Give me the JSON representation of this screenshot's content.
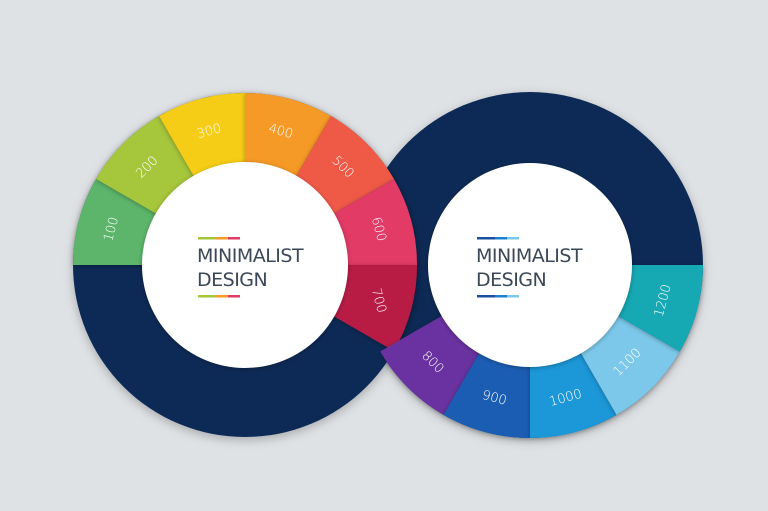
{
  "colors": {
    "background": "#dfe2e5",
    "ring_base": "#0e2c57",
    "center": "#ffffff"
  },
  "left_circle": {
    "title_line1": "MINIMALIST",
    "title_line2": "DESIGN",
    "accent_colors": [
      "#a6c63a",
      "#f59a25",
      "#e13a66"
    ],
    "segments": [
      {
        "label": "100",
        "color": "#5cb56a"
      },
      {
        "label": "200",
        "color": "#a6c63a"
      },
      {
        "label": "300",
        "color": "#f6cd14"
      },
      {
        "label": "400",
        "color": "#f59a25"
      },
      {
        "label": "500",
        "color": "#ef5a47"
      },
      {
        "label": "600",
        "color": "#e13a66"
      },
      {
        "label": "700",
        "color": "#b81c44"
      }
    ]
  },
  "right_circle": {
    "title_line1": "MINIMALIST",
    "title_line2": "DESIGN",
    "accent_colors": [
      "#1a4fa3",
      "#1c7fd0",
      "#7cc8ea"
    ],
    "segments": [
      {
        "label": "800",
        "color": "#6a33a0"
      },
      {
        "label": "900",
        "color": "#1a5db4"
      },
      {
        "label": "1000",
        "color": "#1c97d8"
      },
      {
        "label": "1100",
        "color": "#7cc8ea"
      },
      {
        "label": "1200",
        "color": "#16a8b3"
      }
    ]
  }
}
